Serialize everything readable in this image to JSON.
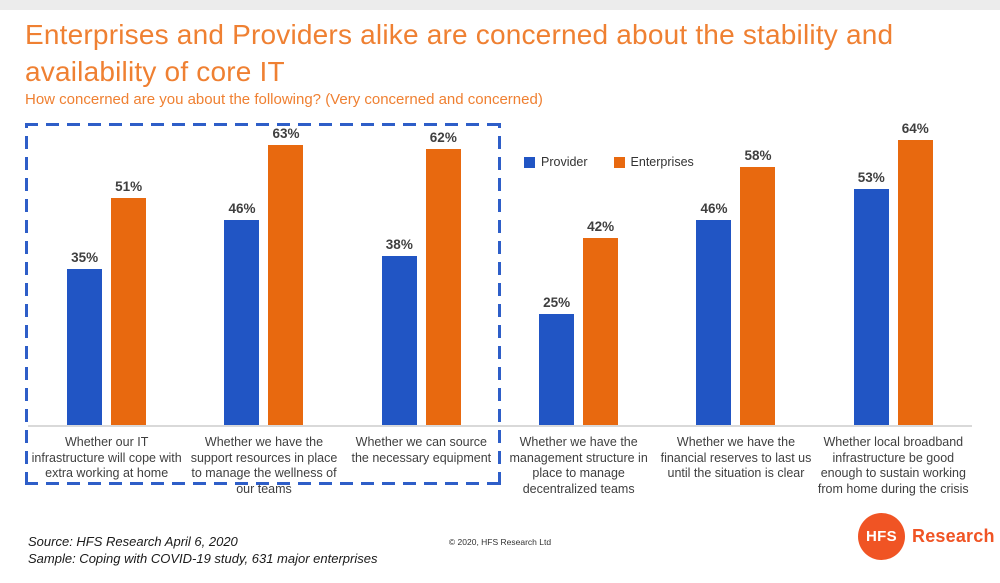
{
  "page": {
    "title": "Enterprises and Providers alike are concerned about the stability and availability of core IT",
    "subtitle": "How concerned are you about the following? (Very concerned and concerned)"
  },
  "colors": {
    "title_orange": "#EF8032",
    "provider_blue": "#2155C4",
    "enterprises_orange": "#E8690F",
    "logo_orange": "#F05424",
    "dashed_border_blue": "#2E5EC8",
    "label_gray": "#3F3F3F",
    "baseline_gray": "#D9D9D9"
  },
  "legend": {
    "items": [
      {
        "label": "Provider",
        "color": "#2155C4"
      },
      {
        "label": "Enterprises",
        "color": "#E8690F"
      }
    ]
  },
  "chart_data": {
    "type": "bar",
    "title": "How concerned are you about the following? (Very concerned and concerned)",
    "categories": [
      "Whether our IT infrastructure will cope with extra working at home",
      "Whether we have the support resources in place to manage the wellness of our teams",
      "Whether we can source the necessary equipment",
      "Whether we have the management structure in place to manage decentralized teams",
      "Whether we have the financial reserves to last us until the situation is clear",
      "Whether local broadband infrastructure be good enough to sustain working from home during the crisis"
    ],
    "series": [
      {
        "name": "Provider",
        "color": "#2155C4",
        "values": [
          35,
          46,
          38,
          25,
          46,
          53
        ]
      },
      {
        "name": "Enterprises",
        "color": "#E8690F",
        "values": [
          51,
          63,
          62,
          42,
          58,
          64
        ]
      }
    ],
    "value_suffix": "%",
    "ylim": [
      0,
      67
    ],
    "grid": false,
    "axis_labels_hidden": true,
    "bar_value_labels": true,
    "legend_position": "top-center",
    "highlight": {
      "type": "blue-dashed-box",
      "categories_enclosed": [
        0,
        1,
        2
      ]
    }
  },
  "footer": {
    "source_line": "Source: HFS Research April 6, 2020",
    "sample_line": "Sample: Coping with COVID-19 study, 631 major enterprises",
    "copyright": "© 2020, HFS Research Ltd"
  },
  "logo": {
    "circle_text": "HFS",
    "wordmark": "Research"
  }
}
